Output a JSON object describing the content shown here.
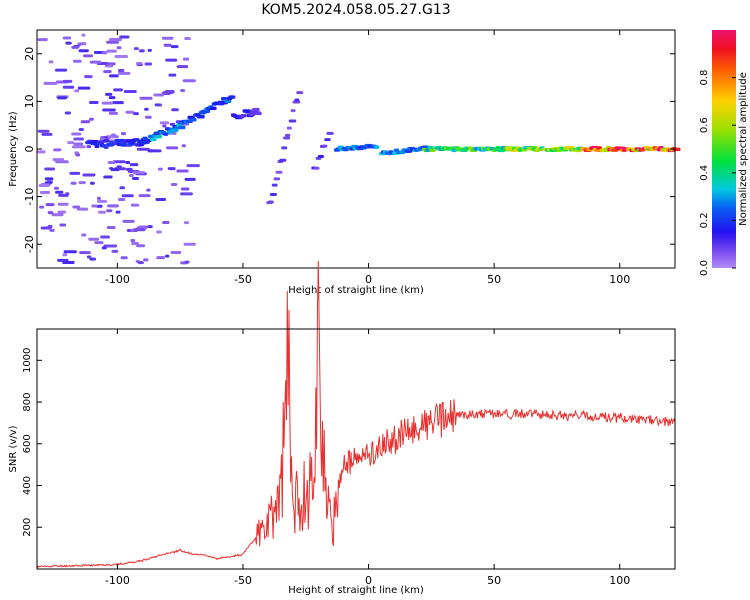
{
  "title": "KOM5.2024.058.05.27.G13",
  "chart_data": [
    {
      "type": "heatmap",
      "xlabel": "Height of straight line (km)",
      "ylabel": "Frequency (Hz)",
      "xlim": [
        -132,
        122
      ],
      "ylim": [
        -25,
        25
      ],
      "xticks": [
        -100,
        -50,
        0,
        50,
        100
      ],
      "yticks": [
        -20,
        -10,
        0,
        10,
        20
      ],
      "colorbar": {
        "label": "Normalized spectral amplitude",
        "range": [
          0,
          1
        ],
        "ticks": [
          0.0,
          0.2,
          0.4,
          0.6,
          0.8
        ],
        "tick_labels": [
          "0.0",
          "0.2",
          "0.4",
          "0.6",
          "0.8"
        ]
      },
      "features": [
        {
          "x0": -112,
          "x1": -90,
          "f0": 1,
          "f1": 1.5,
          "amp": 0.2,
          "width": 2
        },
        {
          "x0": -90,
          "x1": -75,
          "f0": 1.5,
          "f1": 5,
          "amp": 0.3,
          "width": 2
        },
        {
          "x0": -75,
          "x1": -55,
          "f0": 5,
          "f1": 11,
          "amp": 0.25,
          "width": 2
        },
        {
          "x0": -54,
          "x1": -44,
          "f0": 7,
          "f1": 8,
          "amp": 0.15,
          "width": 2
        },
        {
          "x0": -40,
          "x1": -28,
          "f0": -12,
          "f1": 12,
          "amp": 0.1,
          "width": 3
        },
        {
          "x0": -22,
          "x1": -16,
          "f0": -4,
          "f1": 3,
          "amp": 0.12,
          "width": 4
        },
        {
          "x0": -13,
          "x1": 3,
          "f0": 0,
          "f1": 0.6,
          "amp": 0.3,
          "width": 1
        },
        {
          "x0": 5,
          "x1": 22,
          "f0": -1,
          "f1": 0.3,
          "amp": 0.3,
          "width": 1
        },
        {
          "x0": 22,
          "x1": 55,
          "f0": 0,
          "f1": 0,
          "amp": 0.5,
          "width": 1
        },
        {
          "x0": 55,
          "x1": 85,
          "f0": 0,
          "f1": 0,
          "amp": 0.6,
          "width": 1
        },
        {
          "x0": 85,
          "x1": 122,
          "f0": 0,
          "f1": 0,
          "amp": 0.95,
          "width": 1
        }
      ]
    },
    {
      "type": "line",
      "xlabel": "Height of straight line (km)",
      "ylabel": "SNR (v/v)",
      "xlim": [
        -132,
        122
      ],
      "ylim": [
        0,
        1150
      ],
      "xticks": [
        -100,
        -50,
        0,
        50,
        100
      ],
      "yticks": [
        200,
        400,
        600,
        800,
        1000
      ],
      "color": "#e8312f",
      "series": [
        {
          "x": [
            -132,
            -120,
            -110,
            -100,
            -90,
            -85,
            -80,
            -75,
            -70,
            -65,
            -60,
            -55,
            -50,
            -45,
            -40,
            -35,
            -32,
            -30,
            -26,
            -22,
            -20,
            -17,
            -14,
            -12,
            -10,
            -5,
            0,
            5,
            10,
            15,
            20,
            25,
            30,
            35,
            40,
            50,
            60,
            70,
            80,
            90,
            100,
            110,
            122
          ],
          "y": [
            12,
            15,
            18,
            22,
            40,
            60,
            75,
            90,
            70,
            65,
            50,
            60,
            70,
            150,
            200,
            350,
            970,
            300,
            350,
            420,
            1140,
            300,
            200,
            420,
            500,
            520,
            550,
            580,
            620,
            650,
            680,
            700,
            720,
            735,
            740,
            745,
            742,
            740,
            735,
            730,
            725,
            715,
            700
          ]
        }
      ]
    }
  ]
}
